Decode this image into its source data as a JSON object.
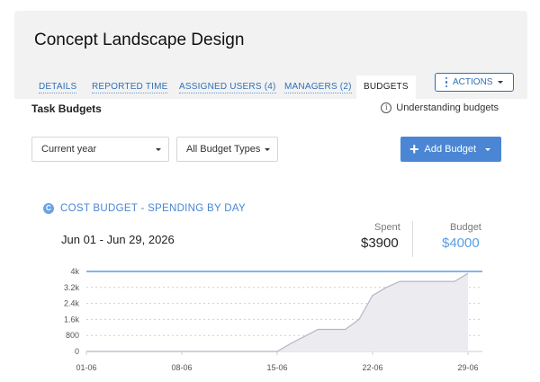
{
  "header": {
    "title": "Concept Landscape Design"
  },
  "tabs": [
    {
      "label": "DETAILS"
    },
    {
      "label": "REPORTED TIME"
    },
    {
      "label": "ASSIGNED USERS (4)"
    },
    {
      "label": "MANAGERS (2)"
    },
    {
      "label": "BUDGETS",
      "active": true
    }
  ],
  "actions": {
    "label": "ACTIONS",
    "icon": "kebab-icon"
  },
  "section": {
    "title": "Task Budgets",
    "help_label": "Understanding budgets",
    "help_icon": "info-icon"
  },
  "filters": {
    "period": {
      "value": "Current year"
    },
    "type": {
      "value": "All Budget Types"
    }
  },
  "add_budget": {
    "label": "Add Budget",
    "icon": "plus-icon"
  },
  "budget_card": {
    "badge": "C",
    "title": "COST BUDGET - SPENDING BY DAY",
    "date_range": "Jun 01 - Jun 29, 2026",
    "spent_label": "Spent",
    "spent_value": "$3900",
    "budget_label": "Budget",
    "budget_value": "$4000"
  },
  "colors": {
    "accent": "#4a86d4",
    "budget_line": "#5a9ee0",
    "spend_line": "#b5b5c8",
    "spend_fill": "#ececf0"
  },
  "chart_data": {
    "type": "area",
    "x_ticks": [
      "01-06",
      "08-06",
      "15-06",
      "22-06",
      "29-06"
    ],
    "y_ticks": [
      "0",
      "800",
      "1.6k",
      "2.4k",
      "3.2k",
      "4k"
    ],
    "ylim": [
      0,
      4000
    ],
    "xlim": [
      1,
      29
    ],
    "budget_value": 4000,
    "series": [
      {
        "values": [
          [
            1,
            0
          ],
          [
            2,
            0
          ],
          [
            3,
            0
          ],
          [
            4,
            0
          ],
          [
            5,
            0
          ],
          [
            6,
            0
          ],
          [
            7,
            0
          ],
          [
            8,
            0
          ],
          [
            9,
            0
          ],
          [
            10,
            0
          ],
          [
            11,
            0
          ],
          [
            12,
            0
          ],
          [
            13,
            0
          ],
          [
            14,
            0
          ],
          [
            15,
            0
          ],
          [
            16,
            400
          ],
          [
            17,
            750
          ],
          [
            18,
            1100
          ],
          [
            19,
            1100
          ],
          [
            20,
            1100
          ],
          [
            21,
            1600
          ],
          [
            22,
            2800
          ],
          [
            23,
            3200
          ],
          [
            24,
            3500
          ],
          [
            25,
            3500
          ],
          [
            26,
            3500
          ],
          [
            27,
            3500
          ],
          [
            28,
            3500
          ],
          [
            29,
            3900
          ]
        ]
      }
    ]
  }
}
